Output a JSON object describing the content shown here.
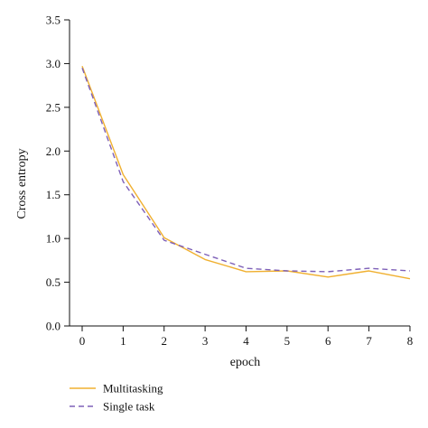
{
  "chart_data": {
    "type": "line",
    "title": "",
    "xlabel": "epoch",
    "ylabel": "Cross entropy",
    "x": [
      0,
      1,
      2,
      3,
      4,
      5,
      6,
      7,
      8
    ],
    "xlim": [
      -0.35,
      8.0
    ],
    "ylim": [
      0.0,
      3.5
    ],
    "xticks": [
      "0",
      "1",
      "2",
      "3",
      "4",
      "5",
      "6",
      "7",
      "8"
    ],
    "yticks": [
      "0.0",
      "0.5",
      "1.0",
      "1.5",
      "2.0",
      "2.5",
      "3.0",
      "3.5"
    ],
    "grid": false,
    "legend_position": "bottom-left",
    "series": [
      {
        "name": "Multitasking",
        "color": "#F0B030",
        "dash": "solid",
        "values": [
          2.97,
          1.73,
          1.01,
          0.76,
          0.62,
          0.63,
          0.56,
          0.63,
          0.54
        ]
      },
      {
        "name": "Single task",
        "color": "#7E60B8",
        "dash": "dashed",
        "values": [
          2.95,
          1.65,
          0.98,
          0.82,
          0.66,
          0.63,
          0.62,
          0.66,
          0.63
        ]
      }
    ]
  }
}
